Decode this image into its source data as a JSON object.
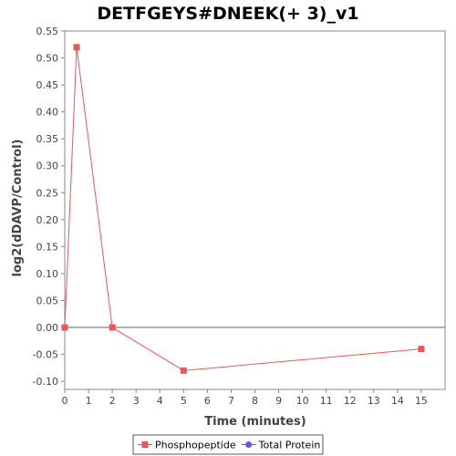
{
  "chart_data": {
    "type": "line",
    "title": "DETFGEYS#DNEEK(+ 3)_v1",
    "xlabel": "Time (minutes)",
    "ylabel": "log2(dDAVP/Control)",
    "xlim": [
      0,
      16
    ],
    "ylim": [
      -0.115,
      0.55
    ],
    "x_ticks": [
      0,
      1,
      2,
      3,
      4,
      5,
      6,
      7,
      8,
      9,
      10,
      11,
      12,
      13,
      14,
      15
    ],
    "y_ticks": [
      -0.1,
      -0.05,
      0.0,
      0.05,
      0.1,
      0.15,
      0.2,
      0.25,
      0.3,
      0.35,
      0.4,
      0.45,
      0.5,
      0.55
    ],
    "grid": false,
    "zero_line": true,
    "legend_position": "bottom",
    "series": [
      {
        "name": "Phosphopeptide",
        "color": "#e8585a",
        "marker": "square",
        "x": [
          0,
          0.5,
          2,
          5,
          15
        ],
        "y": [
          0.0,
          0.52,
          0.0,
          -0.08,
          -0.04
        ]
      },
      {
        "name": "Total Protein",
        "color": "#5a5ae8",
        "marker": "circle",
        "x": [],
        "y": []
      }
    ]
  }
}
